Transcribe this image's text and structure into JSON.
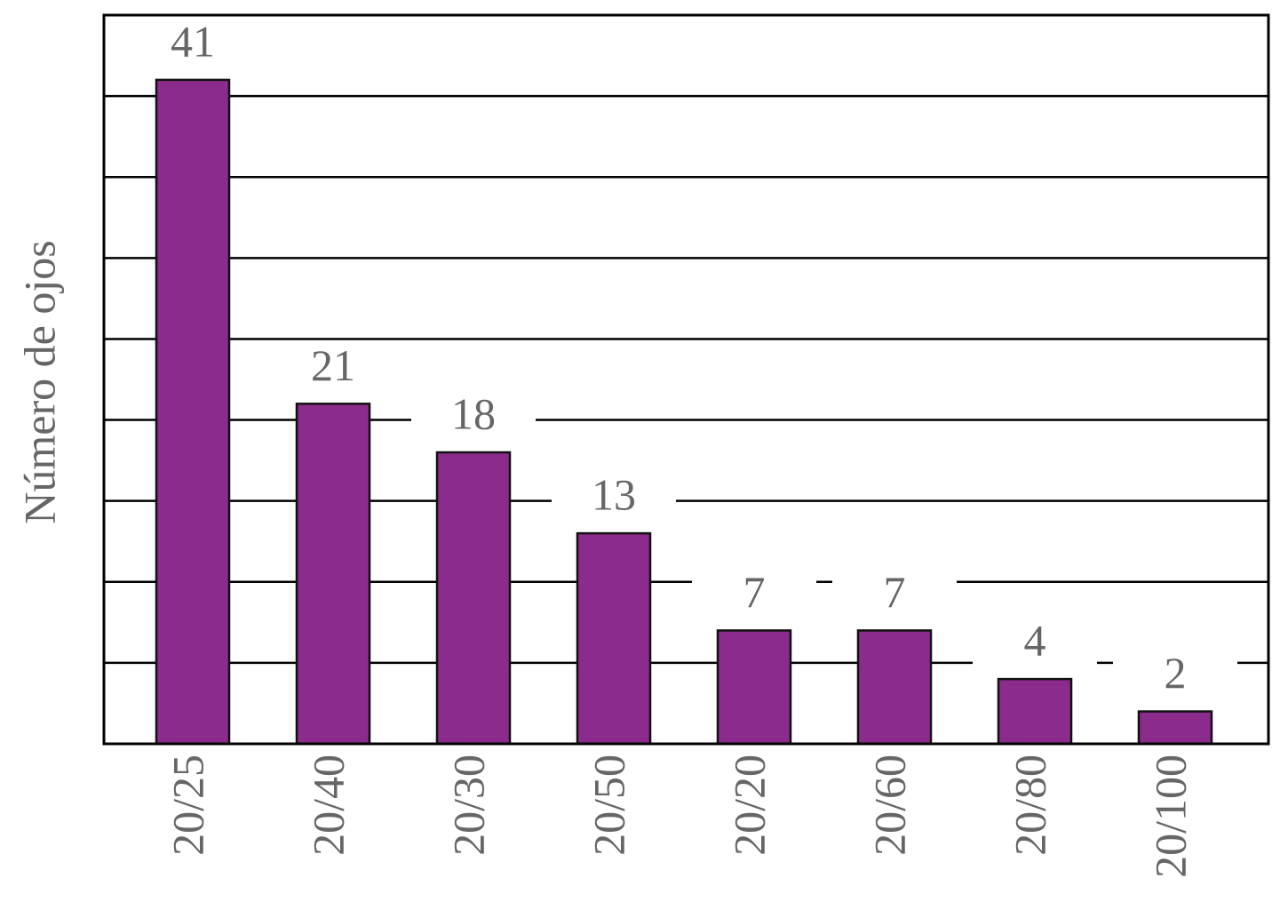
{
  "chart_data": {
    "type": "bar",
    "y_label": "Número de ojos",
    "categories": [
      "20/25",
      "20/40",
      "20/30",
      "20/50",
      "20/20",
      "20/60",
      "20/80",
      "20/100"
    ],
    "values": [
      41,
      21,
      18,
      13,
      7,
      7,
      4,
      2
    ],
    "color": "#8b2b8b",
    "ylim": [
      0,
      45
    ],
    "yticks": [
      0,
      5,
      10,
      15,
      20,
      25,
      30,
      35,
      40,
      45
    ],
    "grid": true
  }
}
